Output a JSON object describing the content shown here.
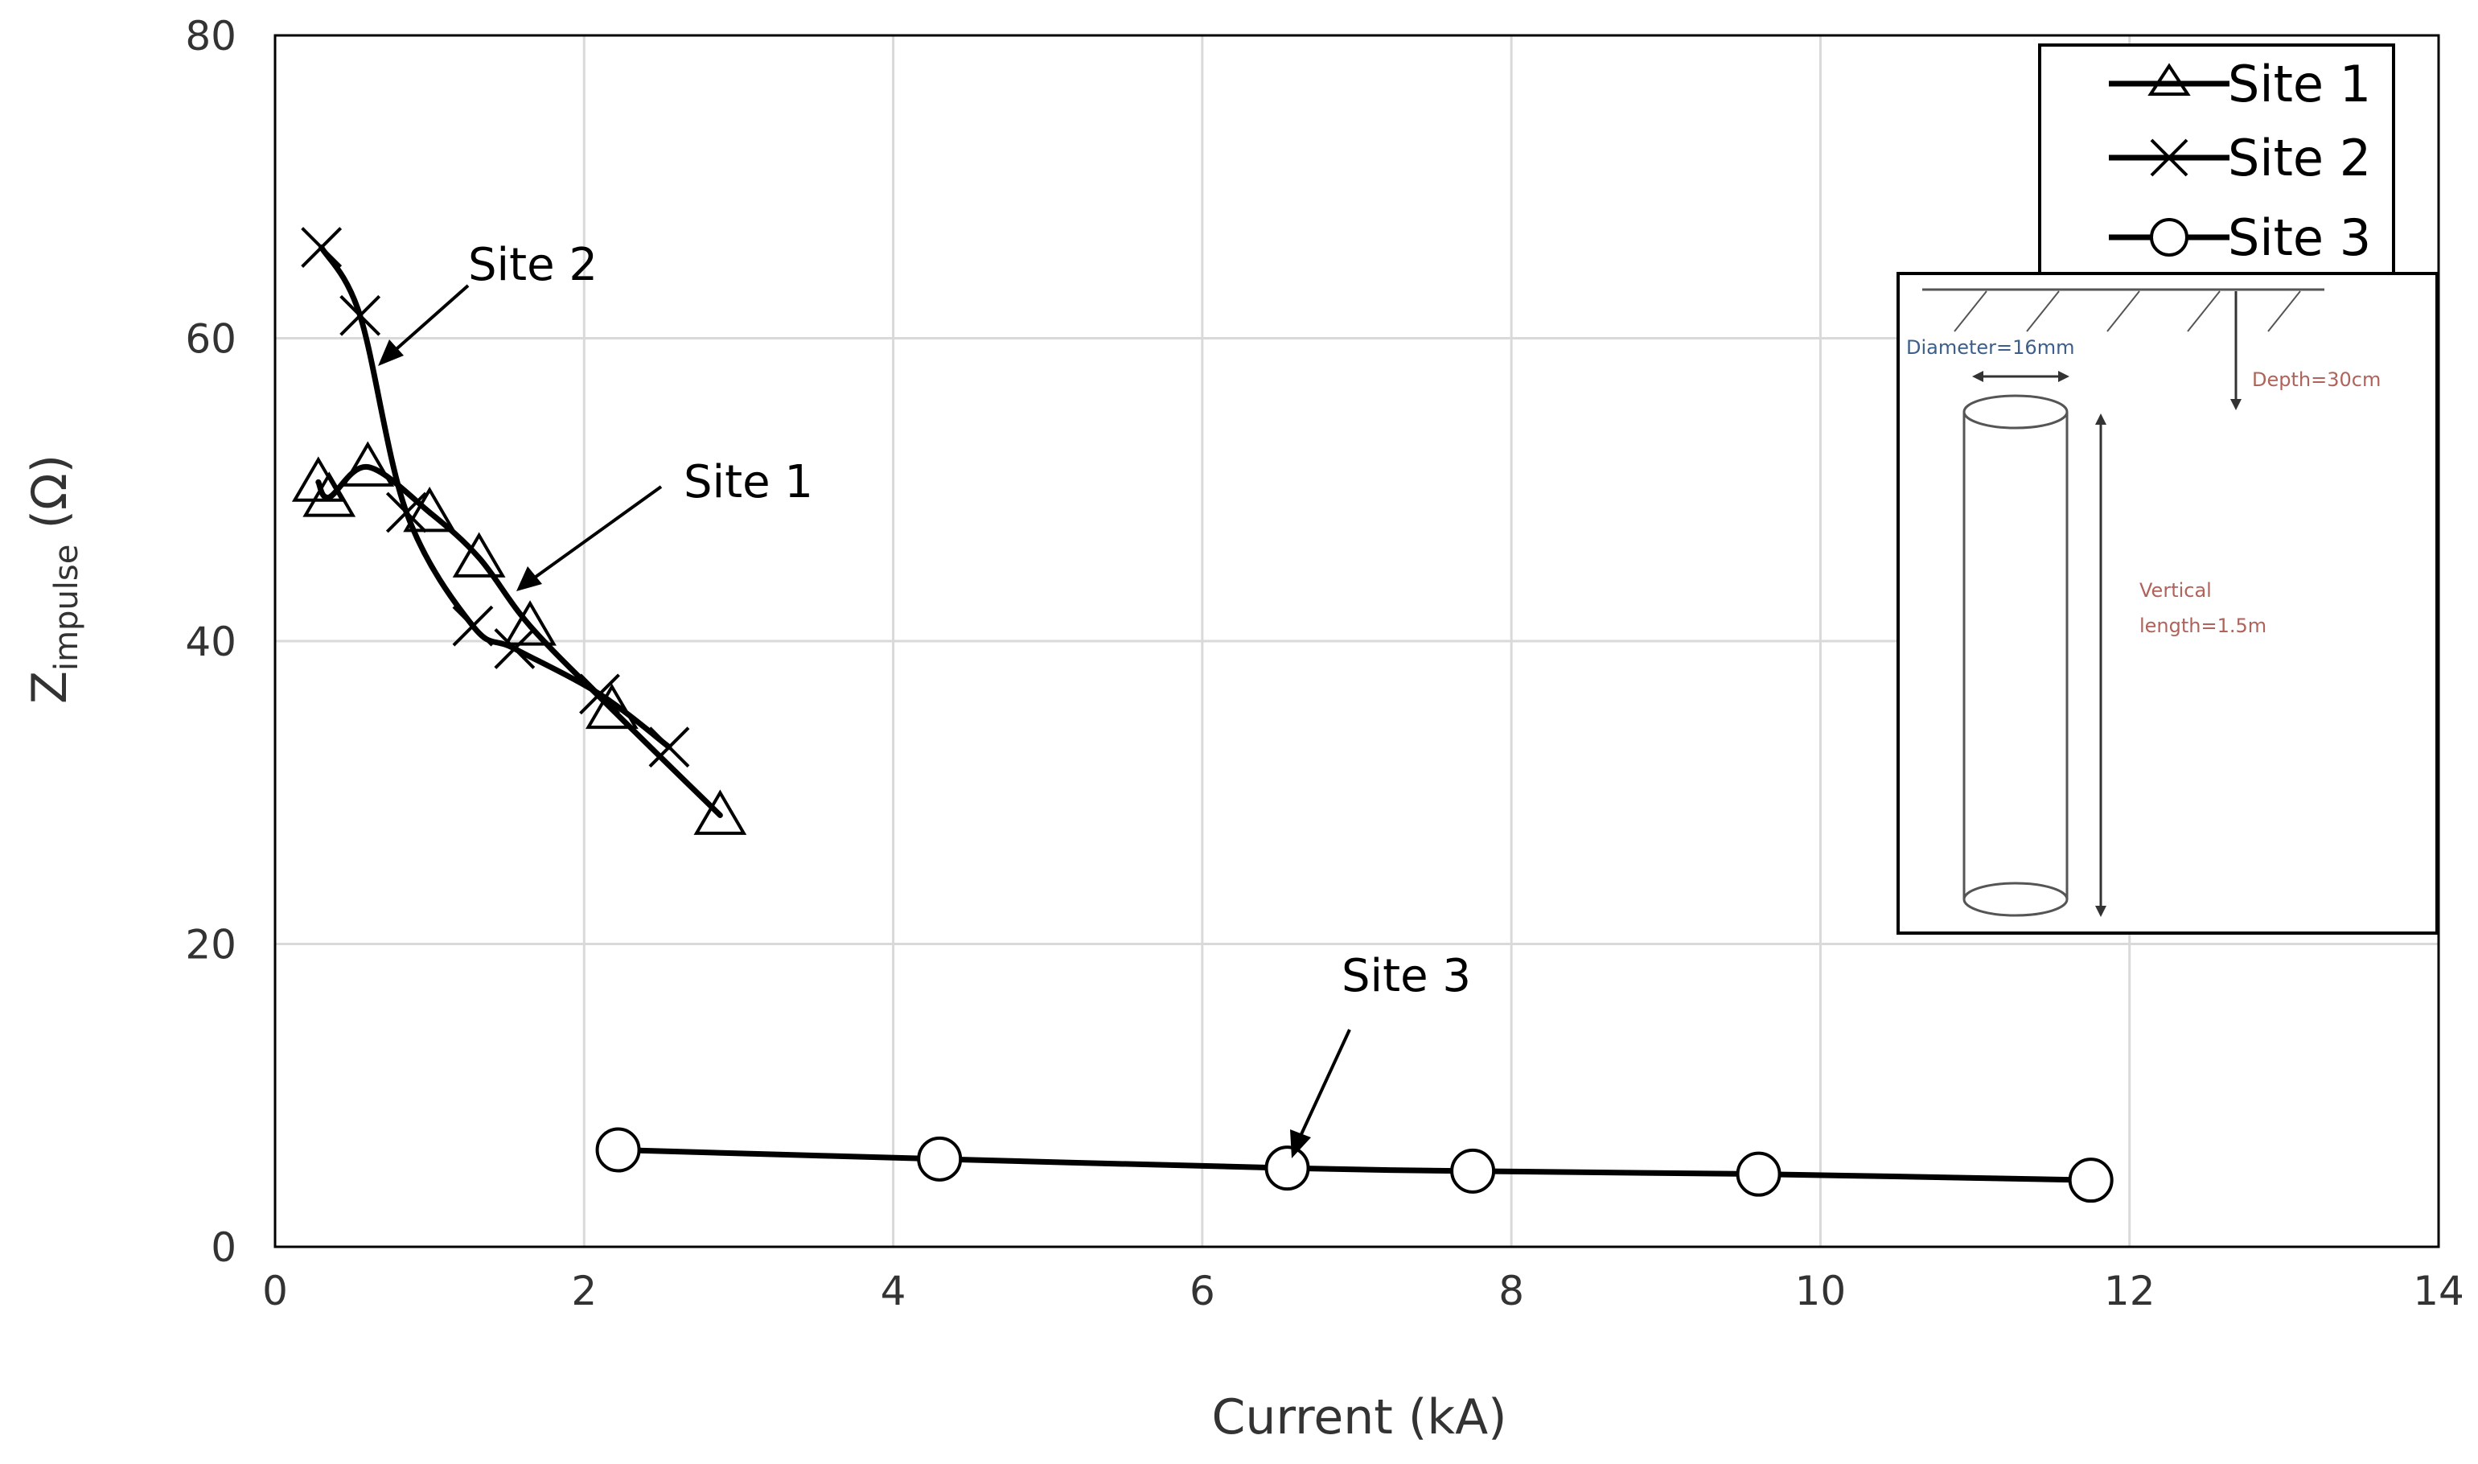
{
  "chart_data": {
    "type": "line",
    "xlabel": "Current (kA)",
    "ylabel": {
      "main": "Z",
      "sub": "impulse",
      "unit": " (Ω)"
    },
    "xlim": [
      0,
      14
    ],
    "ylim": [
      0,
      80
    ],
    "xticks": [
      "0",
      "2",
      "4",
      "6",
      "8",
      "10",
      "12",
      "14"
    ],
    "yticks": [
      "0",
      "20",
      "40",
      "60",
      "80"
    ],
    "grid": true,
    "legend_position": "top-right",
    "series": [
      {
        "name": "Site 1",
        "marker": "triangle",
        "x": [
          0.28,
          0.35,
          0.6,
          1.0,
          1.32,
          1.65,
          2.18,
          2.88
        ],
        "y": [
          50.5,
          49.5,
          51.5,
          48.5,
          45.5,
          41.0,
          35.5,
          28.5
        ]
      },
      {
        "name": "Site 2",
        "marker": "x",
        "x": [
          0.3,
          0.55,
          0.85,
          1.28,
          1.55,
          2.1,
          2.55
        ],
        "y": [
          66.0,
          61.5,
          48.5,
          41.0,
          39.5,
          36.5,
          33.0
        ]
      },
      {
        "name": "Site 3",
        "marker": "circle",
        "x": [
          2.22,
          4.3,
          6.55,
          7.75,
          9.6,
          11.75
        ],
        "y": [
          6.4,
          5.8,
          5.2,
          5.0,
          4.8,
          4.4
        ]
      }
    ],
    "annotations": [
      {
        "text": "Site 2",
        "target_series": "Site 2"
      },
      {
        "text": "Site 1",
        "target_series": "Site 1"
      },
      {
        "text": "Site 3",
        "target_series": "Site 3"
      }
    ]
  },
  "inset": {
    "diameter_label": "Diameter=16mm",
    "depth_label": "Depth=30cm",
    "length_label_line1": "Vertical",
    "length_label_line2": "length=1.5m"
  }
}
